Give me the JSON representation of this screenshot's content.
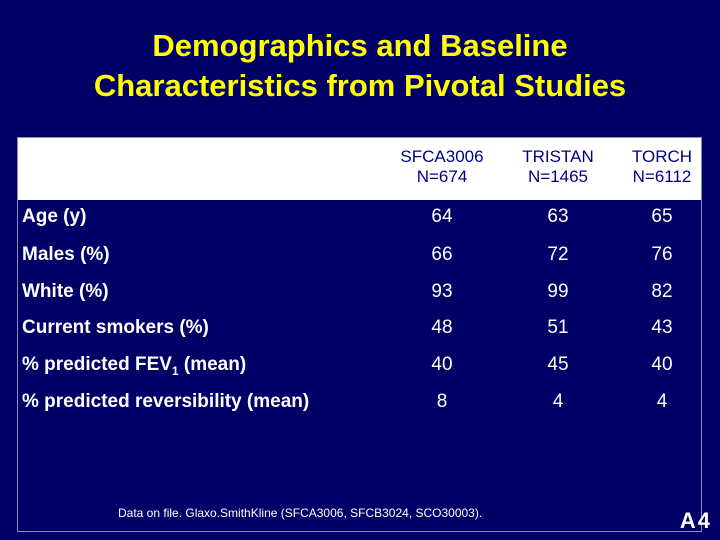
{
  "title": {
    "line1": "Demographics and Baseline",
    "line2": "Characteristics from Pivotal Studies"
  },
  "table": {
    "columns": [
      {
        "name": "SFCA3006",
        "n": "N=674"
      },
      {
        "name": "TRISTAN",
        "n": "N=1465"
      },
      {
        "name": "TORCH",
        "n": "N=6112"
      }
    ],
    "rows": [
      {
        "label": "Age (y)",
        "values": [
          "64",
          "63",
          "65"
        ]
      },
      {
        "label": "Males (%)",
        "values": [
          "66",
          "72",
          "76"
        ]
      },
      {
        "label": "White (%)",
        "values": [
          "93",
          "99",
          "82"
        ]
      },
      {
        "label": "Current smokers (%)",
        "values": [
          "48",
          "51",
          "43"
        ]
      },
      {
        "label_pre": "% predicted FEV",
        "label_sub": "1",
        "label_post": " (mean)",
        "values": [
          "40",
          "45",
          "40"
        ]
      },
      {
        "label": "% predicted reversibility (mean)",
        "values": [
          "8",
          "4",
          "4"
        ]
      }
    ]
  },
  "footnote": "Data on file. Glaxo.SmithKline (SFCA3006, SFCB3024, SCO30003).",
  "slide_id": "A4"
}
